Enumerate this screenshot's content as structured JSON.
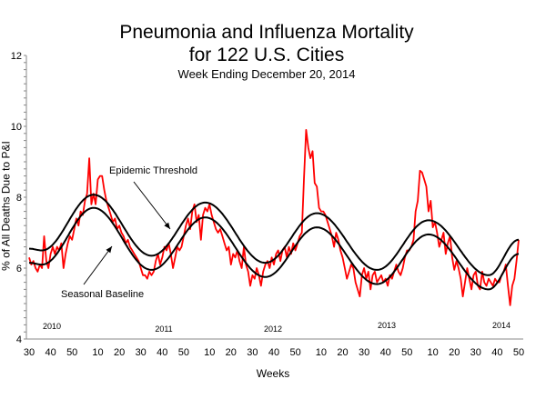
{
  "chart_data": {
    "type": "line",
    "title": [
      "Pneumonia and Influenza Mortality",
      "for 122 U.S. Cities"
    ],
    "subtitle": "Week Ending   December 20, 2014",
    "xlabel": "Weeks",
    "ylabel": "% of All Deaths Due to P&I",
    "ylim": [
      4,
      12
    ],
    "yticks": [
      "4",
      "6",
      "8",
      "10",
      "12"
    ],
    "grid": false,
    "xticks": [
      {
        "year": 2010,
        "week": 30,
        "label": "30"
      },
      {
        "year": 2010,
        "week": 40,
        "label": "40"
      },
      {
        "year": 2010,
        "week": 50,
        "label": "50"
      },
      {
        "year": 2011,
        "week": 10,
        "label": "10"
      },
      {
        "year": 2011,
        "week": 20,
        "label": "20"
      },
      {
        "year": 2011,
        "week": 30,
        "label": "30"
      },
      {
        "year": 2011,
        "week": 40,
        "label": "40"
      },
      {
        "year": 2011,
        "week": 50,
        "label": "50"
      },
      {
        "year": 2012,
        "week": 10,
        "label": "10"
      },
      {
        "year": 2012,
        "week": 20,
        "label": "20"
      },
      {
        "year": 2012,
        "week": 30,
        "label": "30"
      },
      {
        "year": 2012,
        "week": 40,
        "label": "40"
      },
      {
        "year": 2012,
        "week": 50,
        "label": "50"
      },
      {
        "year": 2013,
        "week": 10,
        "label": "10"
      },
      {
        "year": 2013,
        "week": 20,
        "label": "20"
      },
      {
        "year": 2013,
        "week": 30,
        "label": "30"
      },
      {
        "year": 2013,
        "week": 40,
        "label": "40"
      },
      {
        "year": 2013,
        "week": 50,
        "label": "50"
      },
      {
        "year": 2014,
        "week": 10,
        "label": "10"
      },
      {
        "year": 2014,
        "week": 20,
        "label": "20"
      },
      {
        "year": 2014,
        "week": 30,
        "label": "30"
      },
      {
        "year": 2014,
        "week": 40,
        "label": "40"
      },
      {
        "year": 2014,
        "week": 50,
        "label": "50"
      }
    ],
    "year_labels": [
      "2010",
      "2011",
      "2012",
      "2013",
      "2014"
    ],
    "observed": {
      "color": "#ff0000",
      "start": {
        "year": 2010,
        "week": 30
      },
      "values": [
        6.3,
        6.1,
        6.2,
        6.0,
        5.9,
        6.1,
        6.0,
        6.9,
        6.2,
        6.0,
        6.4,
        6.6,
        6.4,
        6.6,
        6.5,
        6.7,
        6.0,
        6.4,
        6.7,
        6.9,
        6.8,
        7.1,
        7.4,
        7.2,
        7.6,
        7.5,
        7.9,
        8.1,
        9.1,
        7.8,
        8.1,
        7.8,
        8.5,
        8.6,
        8.6,
        8.2,
        7.9,
        7.7,
        7.5,
        7.3,
        7.4,
        7.1,
        7.2,
        7.0,
        6.9,
        6.7,
        6.8,
        6.6,
        6.5,
        6.4,
        6.3,
        6.2,
        6.0,
        5.8,
        5.8,
        5.7,
        5.9,
        5.8,
        5.9,
        6.2,
        6.4,
        6.1,
        6.3,
        6.6,
        6.5,
        6.7,
        6.4,
        6.0,
        6.3,
        6.6,
        6.5,
        6.6,
        6.9,
        7.2,
        7.4,
        7.1,
        7.6,
        7.8,
        7.3,
        7.5,
        6.8,
        7.5,
        7.7,
        7.6,
        7.8,
        7.5,
        7.3,
        7.1,
        7.0,
        7.1,
        6.9,
        6.7,
        6.5,
        6.6,
        6.1,
        6.4,
        6.3,
        6.5,
        6.2,
        6.0,
        6.6,
        6.1,
        5.9,
        5.5,
        5.8,
        5.7,
        6.0,
        5.8,
        5.5,
        5.9,
        6.1,
        6.2,
        6.0,
        6.3,
        6.1,
        6.4,
        6.5,
        6.2,
        6.5,
        6.6,
        6.3,
        6.6,
        6.4,
        6.7,
        6.5,
        6.7,
        6.9,
        7.0,
        8.5,
        9.9,
        9.4,
        9.1,
        9.3,
        8.4,
        8.3,
        7.7,
        7.6,
        7.6,
        7.5,
        7.3,
        7.1,
        6.9,
        6.6,
        7.0,
        6.8,
        6.5,
        6.3,
        6.0,
        5.7,
        5.9,
        6.1,
        6.0,
        5.6,
        5.4,
        5.2,
        5.8,
        6.0,
        5.7,
        5.9,
        5.4,
        5.8,
        5.9,
        5.6,
        5.7,
        5.8,
        5.6,
        5.7,
        5.5,
        5.8,
        5.7,
        5.9,
        6.1,
        5.9,
        5.8,
        6.0,
        6.3,
        6.5,
        6.5,
        6.6,
        6.8,
        7.6,
        7.9,
        8.75,
        8.7,
        8.5,
        8.3,
        7.6,
        7.9,
        7.15,
        7.3,
        7.0,
        6.6,
        6.8,
        7.0,
        6.4,
        6.7,
        6.9,
        6.3,
        5.95,
        6.2,
        6.0,
        5.7,
        5.2,
        5.6,
        6.0,
        5.7,
        5.4,
        5.8,
        5.9,
        5.5,
        5.4,
        5.9,
        5.6,
        5.5,
        5.7,
        5.6,
        5.5,
        5.7,
        5.6,
        5.6,
        5.8,
        5.9,
        6.1,
        5.5,
        4.95,
        5.5,
        5.7,
        6.2,
        6.8
      ]
    },
    "seasonal_baseline": {
      "label": "Seasonal Baseline",
      "color": "#000000",
      "points": [
        {
          "year": 2010,
          "week": 30,
          "value": 6.15
        },
        {
          "year": 2010,
          "week": 36,
          "value": 6.1
        },
        {
          "year": 2011,
          "week": 8,
          "value": 7.7
        },
        {
          "year": 2011,
          "week": 35,
          "value": 5.95
        },
        {
          "year": 2012,
          "week": 8,
          "value": 7.43
        },
        {
          "year": 2012,
          "week": 36,
          "value": 5.75
        },
        {
          "year": 2013,
          "week": 8,
          "value": 7.15
        },
        {
          "year": 2013,
          "week": 36,
          "value": 5.55
        },
        {
          "year": 2014,
          "week": 8,
          "value": 6.95
        },
        {
          "year": 2014,
          "week": 36,
          "value": 5.4
        },
        {
          "year": 2014,
          "week": 50,
          "value": 6.4
        }
      ]
    },
    "epidemic_threshold": {
      "label": "Epidemic Threshold",
      "color": "#000000",
      "points": [
        {
          "year": 2010,
          "week": 30,
          "value": 6.55
        },
        {
          "year": 2010,
          "week": 36,
          "value": 6.5
        },
        {
          "year": 2011,
          "week": 8,
          "value": 8.07
        },
        {
          "year": 2011,
          "week": 35,
          "value": 6.35
        },
        {
          "year": 2012,
          "week": 8,
          "value": 7.85
        },
        {
          "year": 2012,
          "week": 36,
          "value": 6.15
        },
        {
          "year": 2013,
          "week": 8,
          "value": 7.55
        },
        {
          "year": 2013,
          "week": 36,
          "value": 5.95
        },
        {
          "year": 2014,
          "week": 8,
          "value": 7.35
        },
        {
          "year": 2014,
          "week": 36,
          "value": 5.8
        },
        {
          "year": 2014,
          "week": 50,
          "value": 6.8
        }
      ]
    }
  }
}
